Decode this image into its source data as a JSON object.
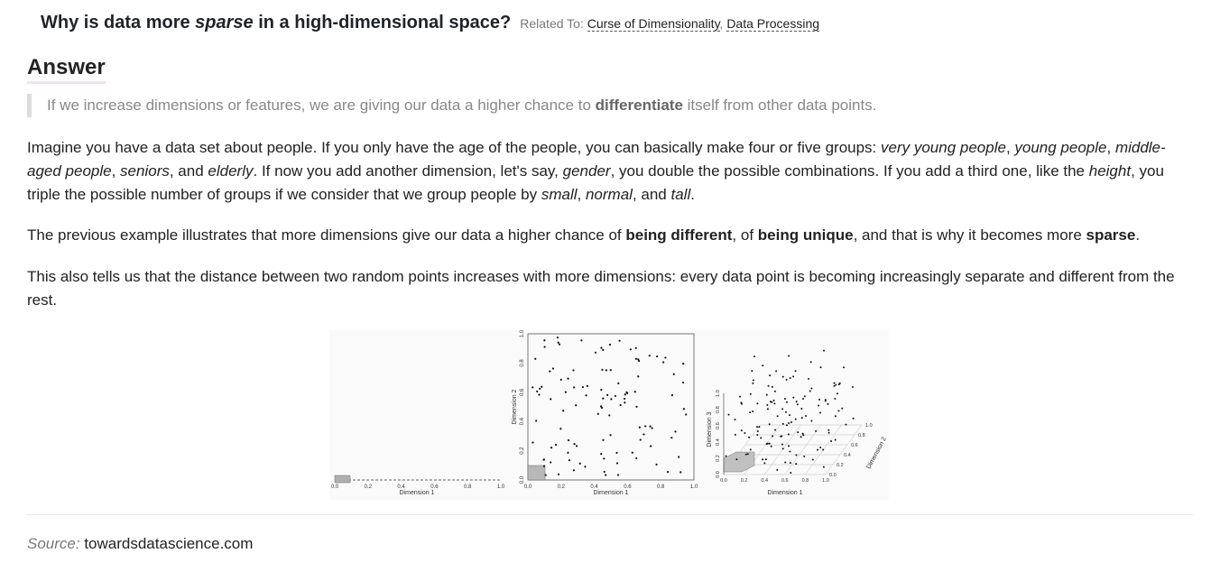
{
  "question": {
    "title_part1": "Why is data more ",
    "title_emph": "sparse",
    "title_part2": " in a high-dimensional space?",
    "related_label": "Related To:",
    "related_links": [
      "Curse of Dimensionality",
      "Data Processing"
    ],
    "related_sep": ", "
  },
  "answer": {
    "heading": "Answer",
    "quote": {
      "before": "If we increase dimensions or features, we are giving our data a higher chance to ",
      "bold": "differentiate",
      "after": " itself from other data points."
    },
    "para1": {
      "t1": "Imagine you have a data set about people. If you only have the age of the people, you can basically make four or five groups: ",
      "e1": "very young people",
      "t2": ", ",
      "e2": "young people",
      "t3": ", ",
      "e3": "middle-aged people",
      "t4": ", ",
      "e4": "seniors",
      "t5": ", and ",
      "e5": "elderly",
      "t6": ". If now you add another dimension, let's say, ",
      "e6": "gender",
      "t7": ", you double the possible combinations. If you add a third one, like the ",
      "e7": "height",
      "t8": ", you triple the possible number of groups if we consider that we group people by ",
      "e8": "small",
      "t9": ", ",
      "e9": "normal",
      "t10": ", and ",
      "e10": "tall",
      "t11": "."
    },
    "para2": {
      "t1": "The previous example illustrates that more dimensions give our data a higher chance of ",
      "b1": "being different",
      "t2": ", of ",
      "b2": "being unique",
      "t3": ", and that is why it becomes more ",
      "b3": "sparse",
      "t4": "."
    },
    "para3": "This also tells us that the distance between two random points increases with more dimensions: every data point is becoming increasingly separate and different from the rest."
  },
  "figure": {
    "panel1": {
      "xlabel": "Dimension 1",
      "ticks": [
        "0.0",
        "0.2",
        "0.4",
        "0.6",
        "0.8",
        "1.0"
      ]
    },
    "panel2": {
      "xlabel": "Dimension 1",
      "ylabel": "Dimension 2",
      "ticks": [
        "0.0",
        "0.2",
        "0.4",
        "0.6",
        "0.8",
        "1.0"
      ]
    },
    "panel3": {
      "xlabel": "Dimension 1",
      "ylabel": "Dimension 3",
      "zlabel": "Dimension 2",
      "ticks": [
        "0.0",
        "0.2",
        "0.4",
        "0.6",
        "0.8",
        "1.0"
      ],
      "depth_ticks": [
        "0.0",
        "0.2",
        "0.4",
        "0.6",
        "0.8",
        "1.0"
      ]
    }
  },
  "source": {
    "label": "Source:",
    "value": "towardsdatascience.com"
  },
  "colors": {
    "quote_bar": "#dddddd",
    "heading_underline": "#efe2ef",
    "link_underline": "#555555"
  }
}
